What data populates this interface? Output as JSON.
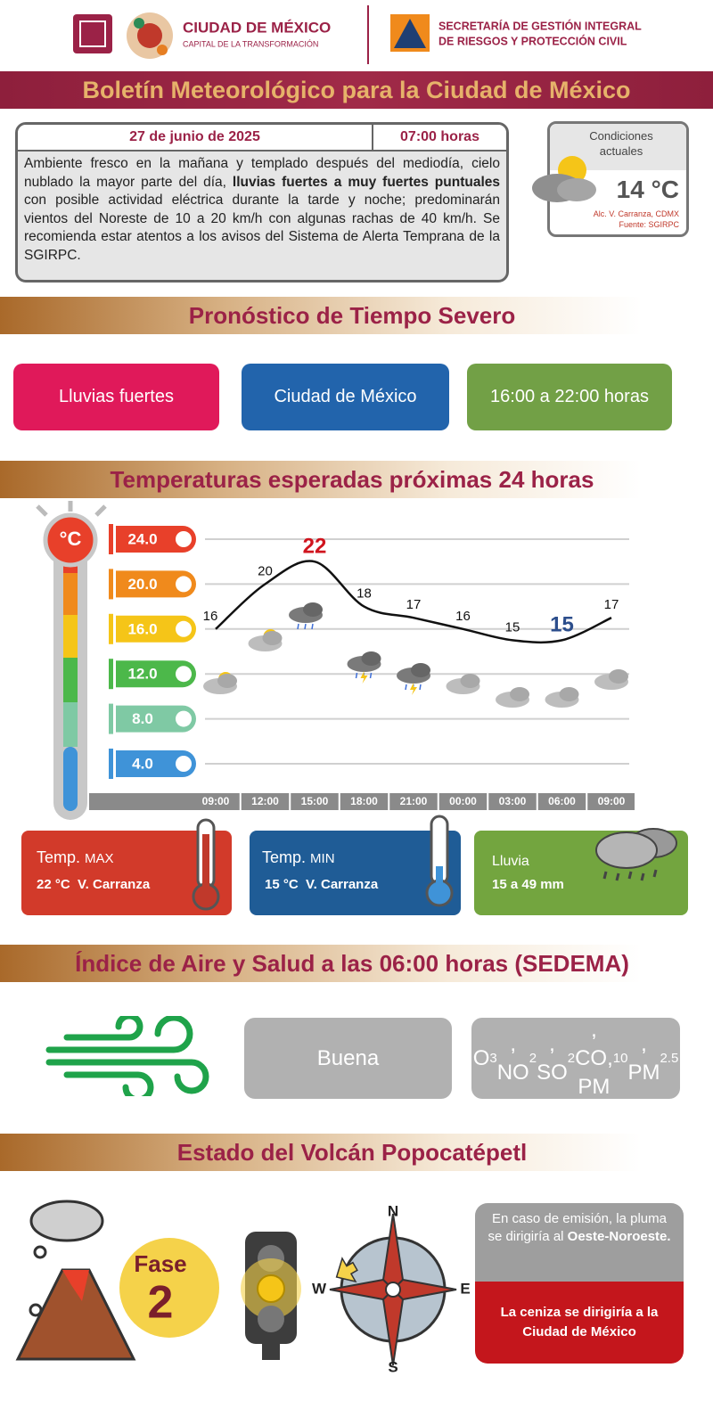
{
  "header": {
    "city": "CIUDAD DE MÉXICO",
    "city_subtitle": "CAPITAL DE LA TRANSFORMACIÓN",
    "agency_line1": "SECRETARÍA DE GESTIÓN INTEGRAL",
    "agency_line2": "DE RIESGOS Y PROTECCIÓN CIVIL"
  },
  "title": "Boletín Meteorológico para la Ciudad de México",
  "bulletin": {
    "date": "27 de junio de 2025",
    "time": "07:00 horas",
    "text": [
      {
        "t": "Ambiente fresco en la mañana y templado después del mediodía, cielo nublado la mayor parte del día, "
      },
      {
        "b": "lluvias fuertes a muy fuertes puntuales"
      },
      {
        "t": " con posible actividad eléctrica durante la tarde y noche; predominarán vientos del Noreste de 10 a 20 km/h con algunas rachas de 40 km/h. Se recomienda estar atentos a los avisos del Sistema de Alerta Temprana de la SGIRPC."
      }
    ]
  },
  "current": {
    "label": "Condiciones actuales",
    "temperature": "14 °C",
    "location": "Alc. V. Carranza, CDMX",
    "source": "Fuente: SGIRPC"
  },
  "severe": {
    "title": "Pronóstico de Tiempo Severo",
    "phenomenon": "Lluvias fuertes",
    "area": "Ciudad de México",
    "period": "16:00 a 22:00 horas"
  },
  "temperatures": {
    "title": "Temperaturas esperadas próximas 24 horas",
    "unit": "°C",
    "times": [
      "09:00",
      "12:00",
      "15:00",
      "18:00",
      "21:00",
      "00:00",
      "03:00",
      "06:00",
      "09:00"
    ],
    "values": [
      16,
      20,
      22,
      18,
      17,
      16,
      15,
      15,
      17
    ],
    "ylim": [
      4,
      24
    ],
    "yticks": [
      {
        "value": 24,
        "label": "24.0"
      },
      {
        "value": 20,
        "label": "20.0"
      },
      {
        "value": 16,
        "label": "16.0"
      },
      {
        "value": 12,
        "label": "12.0"
      },
      {
        "value": 8,
        "label": "8.0"
      },
      {
        "value": 4,
        "label": "4.0"
      }
    ],
    "line_color": "#111111"
  },
  "summary": {
    "max": {
      "label": "Temp.",
      "qualifier": "MAX",
      "value": "22 °C  V. Carranza"
    },
    "min": {
      "label": "Temp.",
      "qualifier": "MIN",
      "value": "15 °C  V. Carranza"
    },
    "rain": {
      "label": "Lluvia",
      "value": "15 a 49 mm"
    }
  },
  "air": {
    "title": "Índice de Aire y Salud a las 06:00 horas (SEDEMA)",
    "quality": "Buena",
    "pollutants": [
      {
        "t": "O"
      },
      {
        "s": "3"
      },
      {
        "t": ", NO"
      },
      {
        "s": "2"
      },
      {
        "t": ", SO"
      },
      {
        "s": "2"
      },
      {
        "t": ", CO, PM"
      },
      {
        "s": "10"
      },
      {
        "t": ", PM"
      },
      {
        "s": "2.5"
      }
    ]
  },
  "volcano": {
    "title": "Estado del Volcán Popocatépetl",
    "phase_label": "Fase",
    "phase": "2",
    "compass": {
      "n": "N",
      "s": "S",
      "e": "E",
      "w": "W"
    },
    "plume_text": "En caso de emisión, la pluma se dirigiría al",
    "plume_direction": "Oeste-Noroeste.",
    "ash_text": "La ceniza se dirigiría a la Ciudad de México"
  }
}
